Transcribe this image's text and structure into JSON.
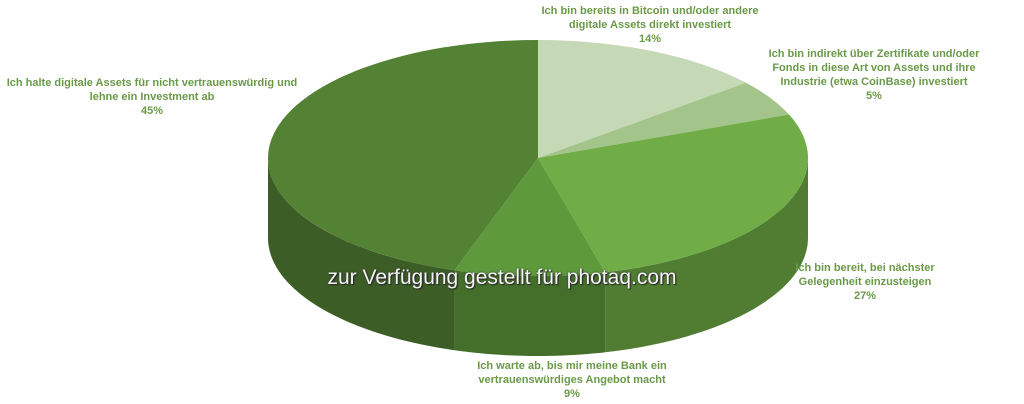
{
  "chart_data": {
    "type": "pie",
    "style": "3d",
    "start": "top",
    "direction": "clockwise",
    "slices": [
      {
        "label": "Ich bin bereits in Bitcoin und/oder andere digitale Assets direkt investiert",
        "value": 14,
        "value_label": "14%",
        "color": "#c6d9b6"
      },
      {
        "label": "Ich bin indirekt über Zertifikate und/oder Fonds in diese Art von Assets und ihre Industrie (etwa CoinBase) investiert",
        "value": 5,
        "value_label": "5%",
        "color": "#a3c48a"
      },
      {
        "label": "Ich bin bereit, bei nächster Gelegenheit einzusteigen",
        "value": 27,
        "value_label": "27%",
        "color": "#70ad47"
      },
      {
        "label": "Ich warte ab, bis mir meine Bank ein vertrauenswürdiges Angebot macht",
        "value": 9,
        "value_label": "9%",
        "color": "#5e9a3c"
      },
      {
        "label": "Ich halte digitale Assets für nicht vertrauenswürdig und lehne ein Investment ab",
        "value": 45,
        "value_label": "45%",
        "color": "#548235"
      }
    ]
  },
  "watermark": "zur Verfügung gestellt für photaq.com"
}
